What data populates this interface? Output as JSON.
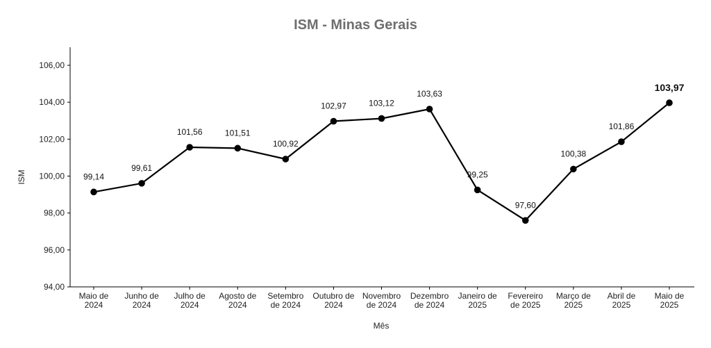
{
  "chart_data": {
    "type": "line",
    "title": "ISM - Minas Gerais",
    "xlabel": "Mês",
    "ylabel": "ISM",
    "ylim": [
      94,
      106
    ],
    "yticks": [
      "94,00",
      "96,00",
      "98,00",
      "100,00",
      "102,00",
      "104,00",
      "106,00"
    ],
    "ytick_values": [
      94,
      96,
      98,
      100,
      102,
      104,
      106
    ],
    "categories": [
      [
        "Maio de",
        "2024"
      ],
      [
        "Junho de",
        "2024"
      ],
      [
        "Julho de",
        "2024"
      ],
      [
        "Agosto de",
        "2024"
      ],
      [
        "Setembro",
        "de 2024"
      ],
      [
        "Outubro de",
        "2024"
      ],
      [
        "Novembro",
        "de 2024"
      ],
      [
        "Dezembro",
        "de 2024"
      ],
      [
        "Janeiro de",
        "2025"
      ],
      [
        "Fevereiro",
        "de 2025"
      ],
      [
        "Março de",
        "2025"
      ],
      [
        "Abril de",
        "2025"
      ],
      [
        "Maio de",
        "2025"
      ]
    ],
    "values": [
      99.14,
      99.61,
      101.56,
      101.51,
      100.92,
      102.97,
      103.12,
      103.63,
      99.25,
      97.6,
      100.38,
      101.86,
      103.97
    ],
    "data_labels": [
      "99,14",
      "99,61",
      "101,56",
      "101,51",
      "100,92",
      "102,97",
      "103,12",
      "103,63",
      "99,25",
      "97,60",
      "100,38",
      "101,86",
      "103,97"
    ],
    "grid": false,
    "line_color": "#000000",
    "title_color": "#6e6e6e"
  }
}
